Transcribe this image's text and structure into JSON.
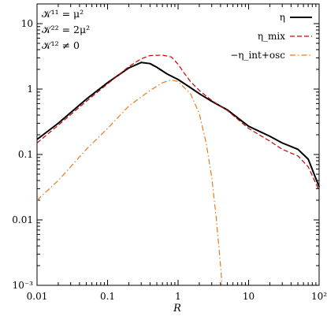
{
  "chart_data": {
    "type": "line",
    "xlabel": "R",
    "ylabel": "",
    "xscale": "log",
    "yscale": "log",
    "xlim": [
      0.01,
      100
    ],
    "ylim": [
      0.001,
      20
    ],
    "grid": false,
    "legend_position": "top-right",
    "x_ticks": [
      {
        "value": 0.01,
        "label": "0.01"
      },
      {
        "value": 0.1,
        "label": "0.1"
      },
      {
        "value": 1,
        "label": "1"
      },
      {
        "value": 10,
        "label": "10"
      },
      {
        "value": 100,
        "label": "10²"
      }
    ],
    "y_ticks": [
      {
        "value": 0.001,
        "label": "10⁻³"
      },
      {
        "value": 0.01,
        "label": "0.01"
      },
      {
        "value": 0.1,
        "label": "0.1"
      },
      {
        "value": 1,
        "label": "1"
      },
      {
        "value": 10,
        "label": "10"
      }
    ],
    "annotations": [
      "𝒦¹¹ = μ²",
      "𝒦²² = 2μ²",
      "𝒦¹² ≠ 0"
    ],
    "series": [
      {
        "name": "η",
        "color": "#000000",
        "style": "solid",
        "points": [
          [
            0.01,
            0.17
          ],
          [
            0.02,
            0.3
          ],
          [
            0.05,
            0.7
          ],
          [
            0.1,
            1.25
          ],
          [
            0.2,
            2.1
          ],
          [
            0.3,
            2.55
          ],
          [
            0.4,
            2.45
          ],
          [
            0.5,
            2.15
          ],
          [
            0.7,
            1.7
          ],
          [
            1,
            1.4
          ],
          [
            1.5,
            1.05
          ],
          [
            2,
            0.85
          ],
          [
            3,
            0.65
          ],
          [
            5,
            0.48
          ],
          [
            10,
            0.27
          ],
          [
            20,
            0.19
          ],
          [
            30,
            0.15
          ],
          [
            50,
            0.12
          ],
          [
            70,
            0.085
          ],
          [
            100,
            0.032
          ]
        ]
      },
      {
        "name": "η_mix",
        "color": "#cc0000",
        "style": "dashed",
        "points": [
          [
            0.01,
            0.15
          ],
          [
            0.02,
            0.28
          ],
          [
            0.05,
            0.65
          ],
          [
            0.1,
            1.2
          ],
          [
            0.2,
            2.2
          ],
          [
            0.3,
            2.9
          ],
          [
            0.4,
            3.25
          ],
          [
            0.6,
            3.3
          ],
          [
            0.8,
            3.1
          ],
          [
            1,
            2.4
          ],
          [
            1.2,
            1.8
          ],
          [
            1.5,
            1.3
          ],
          [
            2,
            0.95
          ],
          [
            3,
            0.67
          ],
          [
            5,
            0.47
          ],
          [
            10,
            0.25
          ],
          [
            20,
            0.16
          ],
          [
            30,
            0.12
          ],
          [
            50,
            0.095
          ],
          [
            70,
            0.065
          ],
          [
            100,
            0.028
          ]
        ]
      },
      {
        "name": "−η_int+osc",
        "color": "#e87a1e",
        "style": "dash-dot",
        "points": [
          [
            0.01,
            0.02
          ],
          [
            0.02,
            0.04
          ],
          [
            0.05,
            0.12
          ],
          [
            0.1,
            0.25
          ],
          [
            0.2,
            0.55
          ],
          [
            0.4,
            0.95
          ],
          [
            0.6,
            1.25
          ],
          [
            0.8,
            1.38
          ],
          [
            1,
            1.3
          ],
          [
            1.5,
            0.85
          ],
          [
            2,
            0.42
          ],
          [
            2.5,
            0.15
          ],
          [
            3,
            0.045
          ],
          [
            3.5,
            0.01
          ],
          [
            4,
            0.002
          ],
          [
            4.2,
            0.001
          ]
        ]
      }
    ]
  }
}
